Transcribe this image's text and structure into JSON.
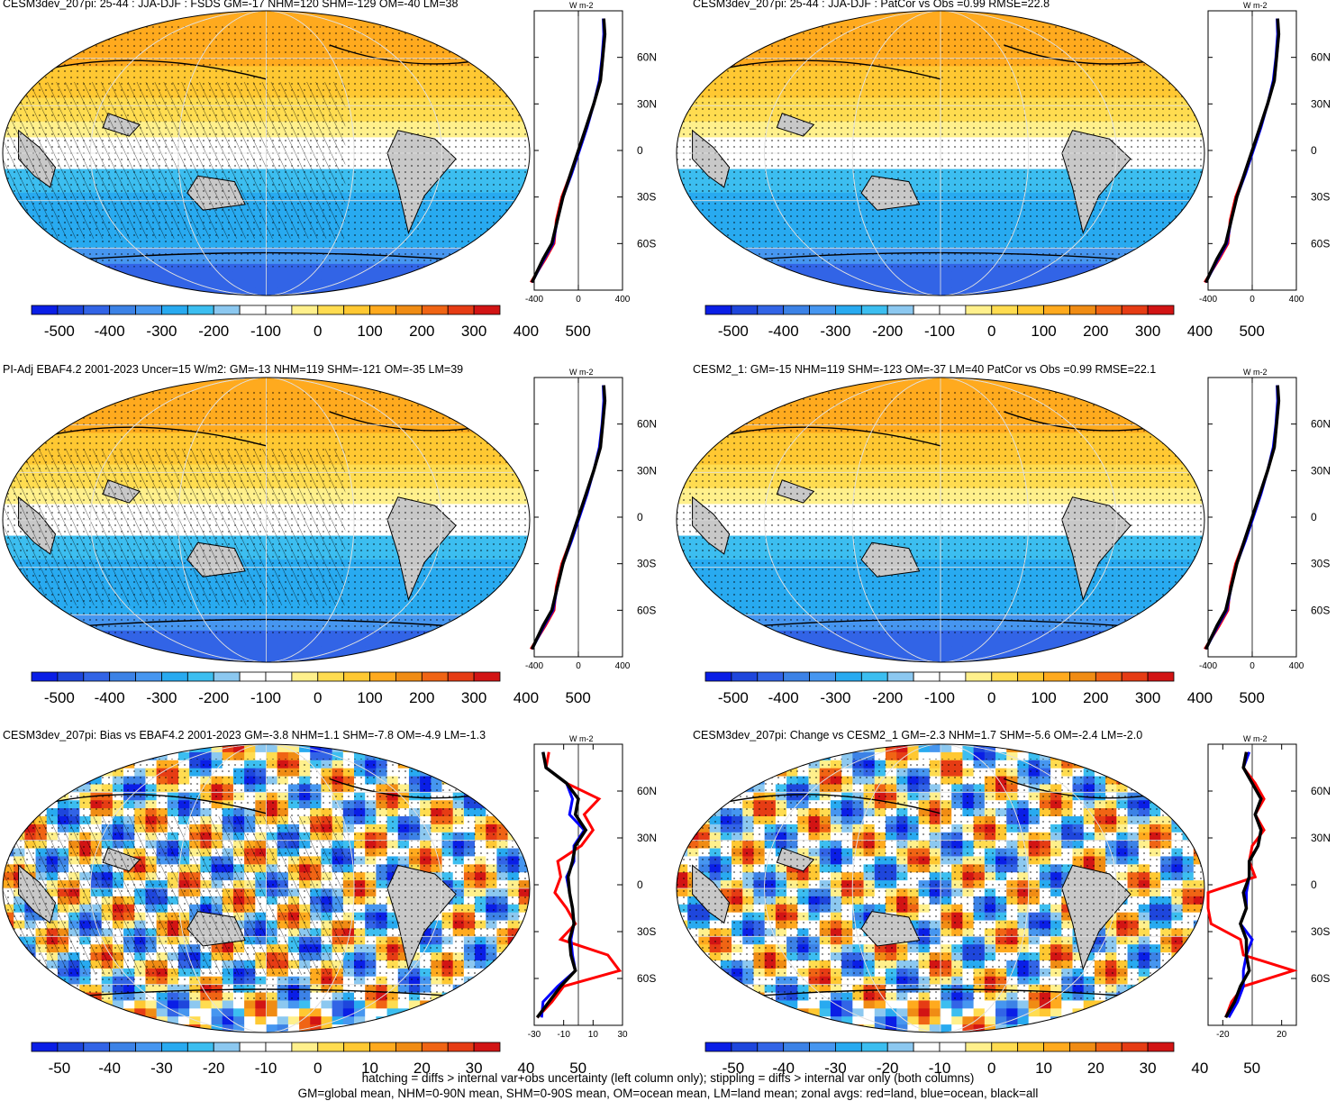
{
  "colors": {
    "bin_colors": [
      "#0a1ee6",
      "#1e46dc",
      "#3264e6",
      "#3c82e6",
      "#4696f0",
      "#28aaf0",
      "#3cbef0",
      "#8cc8f0",
      "#ffffff",
      "#ffffff",
      "#fff08c",
      "#ffdc50",
      "#ffc832",
      "#ffaa1e",
      "#f08c14",
      "#f06414",
      "#e63c14",
      "#d21414"
    ],
    "land": "#c8c8c8",
    "red_line": "#ff0000",
    "blue_line": "#0000ff",
    "black_line": "#000000"
  },
  "panels": [
    {
      "title": "CESM3dev_207pi: 25-44 : JJA-DJF : FSDS GM=-17 NHM=120 SHM=-129 OM=-40 LM=38",
      "cb_labels": [
        "-500",
        "-400",
        "-300",
        "-200",
        "-100",
        "0",
        "100",
        "200",
        "300",
        "400",
        "500"
      ],
      "zonal_ticks": [
        "-400",
        "0",
        "400"
      ],
      "lat_ticks": [
        "60N",
        "30N",
        "0",
        "30S",
        "60S"
      ],
      "unit": "W m-2",
      "hatched": true
    },
    {
      "title": "CESM3dev_207pi: 25-44 : JJA-DJF : PatCor vs Obs =0.99 RMSE=22.8",
      "cb_labels": [
        "-500",
        "-400",
        "-300",
        "-200",
        "-100",
        "0",
        "100",
        "200",
        "300",
        "400",
        "500"
      ],
      "zonal_ticks": [
        "-400",
        "0",
        "400"
      ],
      "lat_ticks": [
        "60N",
        "30N",
        "0",
        "30S",
        "60S"
      ],
      "unit": "W m-2",
      "hatched": false
    },
    {
      "title": "PI-Adj EBAF4.2 2001-2023 Uncer=15 W/m2: GM=-13 NHM=119 SHM=-121 OM=-35 LM=39",
      "cb_labels": [
        "-500",
        "-400",
        "-300",
        "-200",
        "-100",
        "0",
        "100",
        "200",
        "300",
        "400",
        "500"
      ],
      "zonal_ticks": [
        "-400",
        "0",
        "400"
      ],
      "lat_ticks": [
        "60N",
        "30N",
        "0",
        "30S",
        "60S"
      ],
      "unit": "W m-2",
      "hatched": true
    },
    {
      "title": "CESM2_1: GM=-15 NHM=119 SHM=-123 OM=-37 LM=40 PatCor vs Obs =0.99 RMSE=22.1",
      "cb_labels": [
        "-500",
        "-400",
        "-300",
        "-200",
        "-100",
        "0",
        "100",
        "200",
        "300",
        "400",
        "500"
      ],
      "zonal_ticks": [
        "-400",
        "0",
        "400"
      ],
      "lat_ticks": [
        "60N",
        "30N",
        "0",
        "30S",
        "60S"
      ],
      "unit": "W m-2",
      "hatched": false
    },
    {
      "title": "CESM3dev_207pi: Bias vs EBAF4.2 2001-2023 GM=-3.8 NHM=1.1 SHM=-7.8 OM=-4.9 LM=-1.3",
      "cb_labels": [
        "-50",
        "-40",
        "-30",
        "-20",
        "-10",
        "0",
        "10",
        "20",
        "30",
        "40",
        "50"
      ],
      "zonal_ticks": [
        "-30",
        "-10",
        "10",
        "30"
      ],
      "lat_ticks": [
        "60N",
        "30N",
        "0",
        "30S",
        "60S"
      ],
      "unit": "W m-2",
      "hatched": true
    },
    {
      "title": "CESM3dev_207pi: Change vs CESM2_1 GM=-2.3 NHM=1.7 SHM=-5.6 OM=-2.4 LM=-2.0",
      "cb_labels": [
        "-50",
        "-40",
        "-30",
        "-20",
        "-10",
        "0",
        "10",
        "20",
        "30",
        "40",
        "50"
      ],
      "zonal_ticks": [
        "-20",
        "20"
      ],
      "lat_ticks": [
        "60N",
        "30N",
        "0",
        "30S",
        "60S"
      ],
      "unit": "W m-2",
      "hatched": false
    }
  ],
  "footer": {
    "line1": "hatching = diffs > internal var+obs uncertainty (left column only); stippling = diffs > internal var only (both columns)",
    "line2": "GM=global mean, NHM=0-90N mean, SHM=0-90S mean, OM=ocean mean, LM=land mean; zonal avgs: red=land, blue=ocean, black=all"
  },
  "chart_data": [
    {
      "type": "heatmap",
      "title": "CESM3dev_207pi: 25-44 : JJA-DJF : FSDS GM=-17 NHM=120 SHM=-129 OM=-40 LM=38",
      "colorbar_range": [
        -500,
        500
      ],
      "zonal_mean": {
        "type": "line",
        "xlim": [
          -400,
          400
        ],
        "lat": [
          -85,
          -70,
          -60,
          -45,
          -30,
          -15,
          0,
          15,
          30,
          45,
          60,
          75,
          85
        ],
        "series": [
          {
            "values": [
              -430,
              -300,
              -220,
              -200,
              -150,
              -70,
              0,
              70,
              140,
              200,
              220,
              240,
              230
            ]
          },
          {
            "values": [
              -420,
              -310,
              -230,
              -190,
              -140,
              -60,
              10,
              80,
              140,
              190,
              215,
              230,
              225
            ]
          },
          {
            "values": [
              -420,
              -320,
              -240,
              -190,
              -140,
              -70,
              0,
              70,
              140,
              200,
              220,
              240,
              230
            ]
          }
        ]
      }
    },
    {
      "type": "heatmap",
      "title": "CESM3dev_207pi: 25-44 : JJA-DJF : PatCor vs Obs =0.99 RMSE=22.8",
      "colorbar_range": [
        -500,
        500
      ],
      "zonal_mean": {
        "type": "line",
        "xlim": [
          -400,
          400
        ],
        "lat": [
          -85,
          -70,
          -60,
          -45,
          -30,
          -15,
          0,
          15,
          30,
          45,
          60,
          75,
          85
        ],
        "series": [
          {
            "values": [
              -430,
              -300,
              -220,
              -200,
              -150,
              -70,
              0,
              70,
              140,
              200,
              220,
              240,
              230
            ]
          },
          {
            "values": [
              -420,
              -310,
              -230,
              -190,
              -140,
              -60,
              10,
              80,
              140,
              190,
              215,
              230,
              225
            ]
          },
          {
            "values": [
              -420,
              -320,
              -240,
              -190,
              -140,
              -70,
              0,
              70,
              140,
              200,
              220,
              240,
              230
            ]
          }
        ]
      }
    },
    {
      "type": "heatmap",
      "title": "PI-Adj EBAF4.2 2001-2023 Uncer=15 W/m2: GM=-13 NHM=119 SHM=-121 OM=-35 LM=39",
      "colorbar_range": [
        -500,
        500
      ],
      "zonal_mean": {
        "type": "line",
        "xlim": [
          -400,
          400
        ],
        "lat": [
          -85,
          -70,
          -60,
          -45,
          -30,
          -15,
          0,
          15,
          30,
          45,
          60,
          75,
          85
        ],
        "series": [
          {
            "values": [
              -430,
              -300,
              -220,
              -200,
              -150,
              -70,
              0,
              70,
              140,
              200,
              220,
              240,
              230
            ]
          },
          {
            "values": [
              -420,
              -310,
              -230,
              -190,
              -140,
              -60,
              10,
              80,
              140,
              190,
              215,
              230,
              225
            ]
          },
          {
            "values": [
              -420,
              -320,
              -240,
              -190,
              -140,
              -70,
              0,
              70,
              140,
              200,
              220,
              240,
              230
            ]
          }
        ]
      }
    },
    {
      "type": "heatmap",
      "title": "CESM2_1: GM=-15 NHM=119 SHM=-123 OM=-37 LM=40 PatCor vs Obs =0.99 RMSE=22.1",
      "colorbar_range": [
        -500,
        500
      ],
      "zonal_mean": {
        "type": "line",
        "xlim": [
          -400,
          400
        ],
        "lat": [
          -85,
          -70,
          -60,
          -45,
          -30,
          -15,
          0,
          15,
          30,
          45,
          60,
          75,
          85
        ],
        "series": [
          {
            "values": [
              -430,
              -300,
              -220,
              -200,
              -150,
              -70,
              0,
              70,
              140,
              200,
              220,
              240,
              230
            ]
          },
          {
            "values": [
              -420,
              -310,
              -230,
              -190,
              -140,
              -60,
              10,
              80,
              140,
              190,
              215,
              230,
              225
            ]
          },
          {
            "values": [
              -420,
              -320,
              -240,
              -190,
              -140,
              -70,
              0,
              70,
              140,
              200,
              220,
              240,
              230
            ]
          }
        ]
      }
    },
    {
      "type": "heatmap",
      "title": "CESM3dev_207pi: Bias vs EBAF4.2 2001-2023 GM=-3.8 NHM=1.1 SHM=-7.8 OM=-4.9 LM=-1.3",
      "colorbar_range": [
        -50,
        50
      ],
      "zonal_mean": {
        "type": "line",
        "xlim": [
          -30,
          30
        ],
        "lat": [
          -85,
          -75,
          -65,
          -55,
          -45,
          -35,
          -25,
          -15,
          -5,
          5,
          15,
          25,
          35,
          45,
          55,
          65,
          75,
          85
        ],
        "series": [
          {
            "values": [
              -28,
              -18,
              -10,
              28,
              20,
              -12,
              -2,
              -8,
              -16,
              -12,
              -14,
              2,
              10,
              4,
              14,
              -8,
              -22,
              -20
            ]
          },
          {
            "values": [
              -25,
              -24,
              -14,
              -2,
              -4,
              -5,
              -3,
              -4,
              -6,
              -8,
              -3,
              -3,
              4,
              -6,
              -4,
              -8,
              -22,
              -24
            ]
          },
          {
            "values": [
              -28,
              -20,
              -12,
              -2,
              -5,
              -6,
              -3,
              -4,
              -6,
              -7,
              -4,
              -2,
              5,
              -2,
              0,
              -8,
              -22,
              -24
            ]
          }
        ]
      }
    },
    {
      "type": "heatmap",
      "title": "CESM3dev_207pi: Change vs CESM2_1 GM=-2.3 NHM=1.7 SHM=-5.6 OM=-2.4 LM=-2.0",
      "colorbar_range": [
        -50,
        50
      ],
      "zonal_mean": {
        "type": "line",
        "xlim": [
          -30,
          30
        ],
        "lat": [
          -85,
          -75,
          -65,
          -55,
          -45,
          -35,
          -25,
          -15,
          -5,
          5,
          15,
          25,
          35,
          45,
          55,
          65,
          75,
          85
        ],
        "series": [
          {
            "values": [
              -18,
              -14,
              -6,
              28,
              -6,
              -8,
              -28,
              -30,
              -30,
              2,
              -2,
              0,
              8,
              2,
              8,
              2,
              -6,
              -4
            ]
          },
          {
            "values": [
              -16,
              -10,
              -6,
              -6,
              -4,
              0,
              -8,
              -4,
              -4,
              -2,
              -2,
              4,
              6,
              2,
              6,
              0,
              -6,
              -2
            ]
          },
          {
            "values": [
              -18,
              -12,
              -8,
              -2,
              -4,
              -4,
              -8,
              -4,
              -6,
              -2,
              -2,
              4,
              6,
              2,
              6,
              0,
              -6,
              -4
            ]
          }
        ]
      }
    }
  ]
}
